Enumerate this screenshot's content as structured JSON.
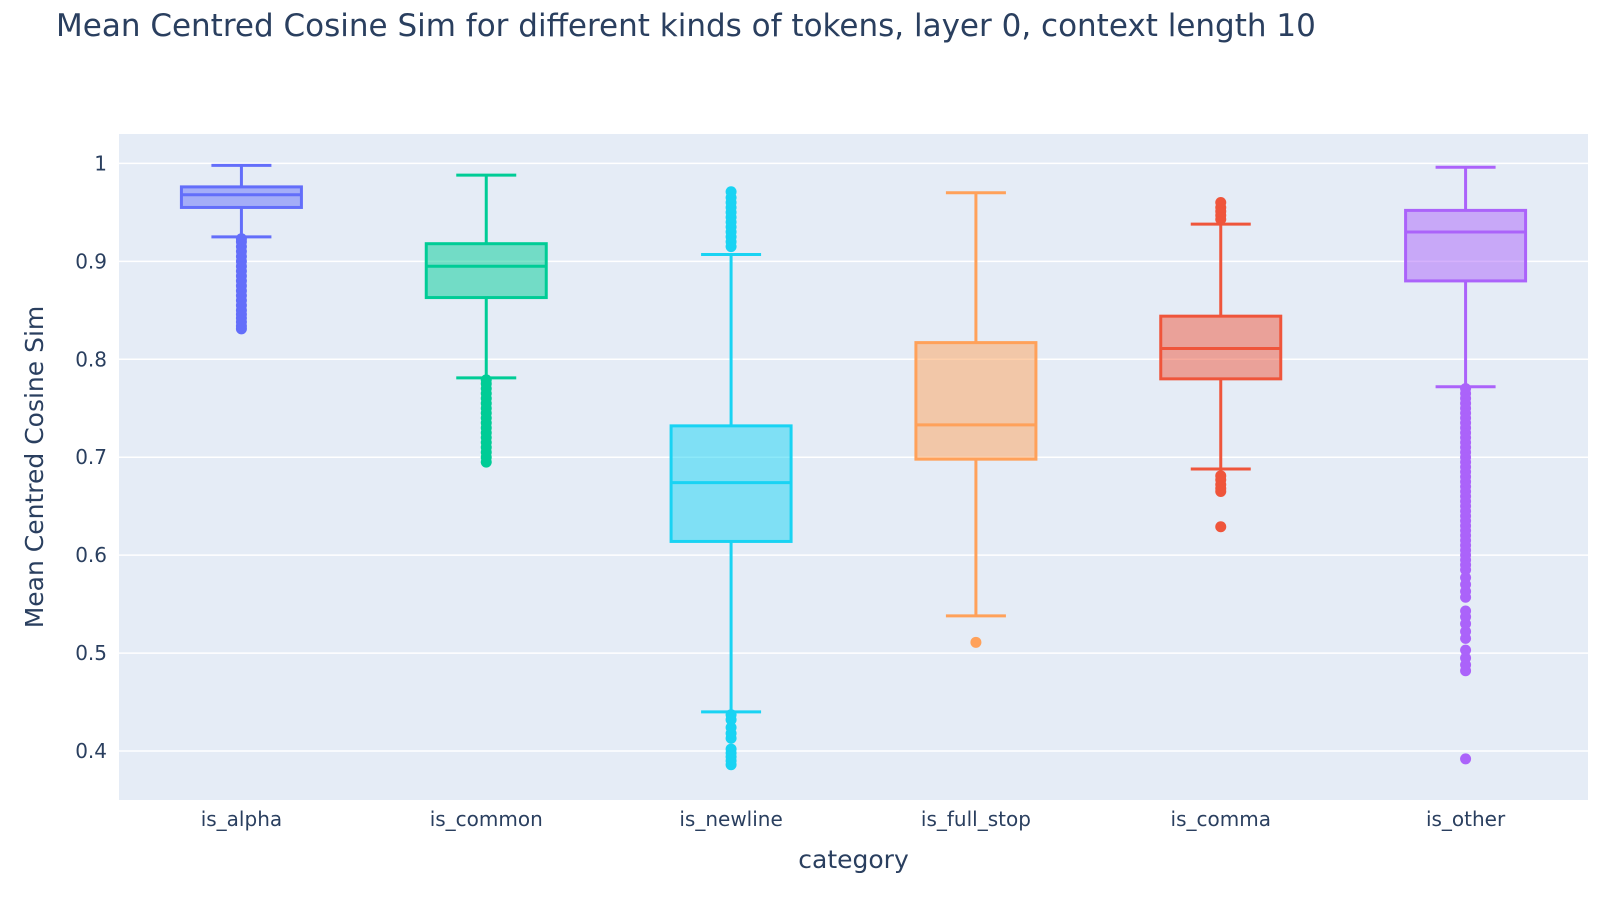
{
  "chart_data": {
    "type": "box",
    "title": "Mean Centred Cosine Sim for different kinds of tokens, layer 0, context length 10",
    "xlabel": "category",
    "ylabel": "Mean Centred Cosine Sim",
    "ylim": [
      0.35,
      1.03
    ],
    "yticks": [
      0.4,
      0.5,
      0.6,
      0.7,
      0.8,
      0.9,
      1
    ],
    "ytick_labels": [
      "0.4",
      "0.5",
      "0.6",
      "0.7",
      "0.8",
      "0.9",
      "1"
    ],
    "grid": true,
    "series": [
      {
        "category": "is_alpha",
        "color": "#636efa",
        "lowerfence": 0.925,
        "q1": 0.955,
        "median": 0.968,
        "q3": 0.976,
        "upperfence": 0.998,
        "outliers": [
          0.831,
          0.834,
          0.838,
          0.842,
          0.846,
          0.85,
          0.855,
          0.86,
          0.865,
          0.87,
          0.875,
          0.88,
          0.885,
          0.89,
          0.895,
          0.9,
          0.905,
          0.91,
          0.915,
          0.92,
          0.923
        ]
      },
      {
        "category": "is_common",
        "color": "#00cc96",
        "lowerfence": 0.781,
        "q1": 0.863,
        "median": 0.895,
        "q3": 0.918,
        "upperfence": 0.988,
        "outliers": [
          0.695,
          0.7,
          0.705,
          0.71,
          0.715,
          0.72,
          0.725,
          0.73,
          0.735,
          0.74,
          0.745,
          0.75,
          0.755,
          0.76,
          0.765,
          0.77,
          0.775,
          0.779
        ]
      },
      {
        "category": "is_newline",
        "color": "#19d3f3",
        "lowerfence": 0.44,
        "q1": 0.614,
        "median": 0.674,
        "q3": 0.732,
        "upperfence": 0.907,
        "outliers": [
          0.386,
          0.39,
          0.394,
          0.398,
          0.402,
          0.413,
          0.418,
          0.424,
          0.432,
          0.437,
          0.915,
          0.92,
          0.925,
          0.93,
          0.935,
          0.94,
          0.945,
          0.95,
          0.955,
          0.96,
          0.965,
          0.971
        ]
      },
      {
        "category": "is_full_stop",
        "color": "#ffa15a",
        "lowerfence": 0.538,
        "q1": 0.698,
        "median": 0.733,
        "q3": 0.817,
        "upperfence": 0.97,
        "outliers": [
          0.511
        ]
      },
      {
        "category": "is_comma",
        "color": "#ef553b",
        "lowerfence": 0.688,
        "q1": 0.78,
        "median": 0.811,
        "q3": 0.844,
        "upperfence": 0.938,
        "outliers": [
          0.629,
          0.665,
          0.668,
          0.672,
          0.677,
          0.681,
          0.943,
          0.947,
          0.951,
          0.955,
          0.96
        ]
      },
      {
        "category": "is_other",
        "color": "#ab63fa",
        "lowerfence": 0.772,
        "q1": 0.88,
        "median": 0.93,
        "q3": 0.952,
        "upperfence": 0.996,
        "outliers": [
          0.392,
          0.482,
          0.488,
          0.495,
          0.503,
          0.515,
          0.522,
          0.53,
          0.537,
          0.543,
          0.557,
          0.563,
          0.57,
          0.577,
          0.585,
          0.59,
          0.595,
          0.6,
          0.605,
          0.61,
          0.615,
          0.62,
          0.625,
          0.63,
          0.635,
          0.64,
          0.645,
          0.65,
          0.655,
          0.66,
          0.665,
          0.67,
          0.675,
          0.68,
          0.685,
          0.69,
          0.695,
          0.7,
          0.705,
          0.71,
          0.715,
          0.72,
          0.725,
          0.73,
          0.735,
          0.74,
          0.745,
          0.75,
          0.755,
          0.76,
          0.765,
          0.77
        ]
      }
    ]
  }
}
